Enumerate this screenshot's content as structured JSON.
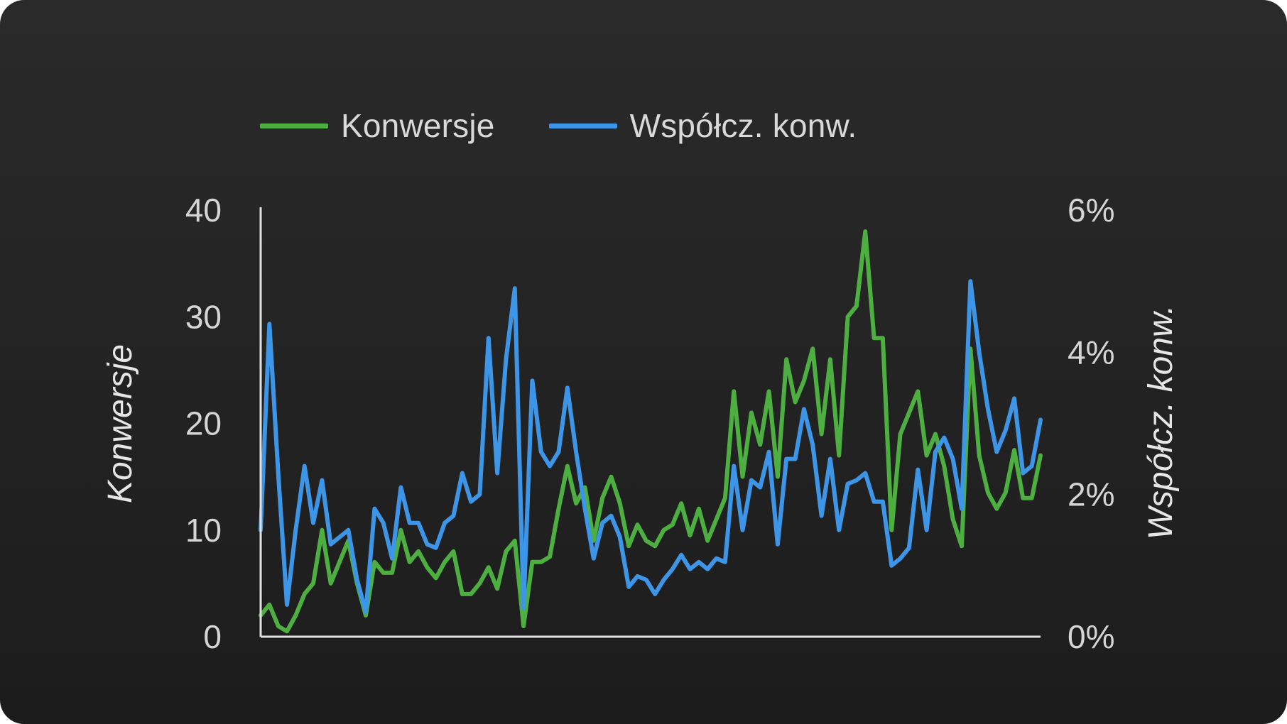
{
  "legend": {
    "conversions_label": "Konwersje",
    "rate_label": "Współcz. konw."
  },
  "colors": {
    "background": "#222222",
    "conversions": "#4caf3f",
    "rate": "#3d95e8",
    "axis": "#e0e0e0",
    "text": "#d5d5d5"
  },
  "chart_data": {
    "type": "line",
    "xlabel": "",
    "ylabel": "Konwersje",
    "y2label": "Współcz. konw.",
    "ylim": [
      0,
      40
    ],
    "y2lim": [
      0,
      6
    ],
    "yticks": [
      "0",
      "10",
      "20",
      "30",
      "40"
    ],
    "y2ticks": [
      "0%",
      "2%",
      "4%",
      "6%"
    ],
    "legend_position": "top-left",
    "grid": false,
    "series": [
      {
        "name": "Konwersje",
        "axis": "left",
        "values": [
          2,
          3,
          1,
          0.5,
          2,
          4,
          5,
          10,
          5,
          7,
          9,
          5,
          2,
          7,
          6,
          6,
          10,
          7,
          8,
          6.5,
          5.5,
          7,
          8,
          4,
          4,
          5,
          6.5,
          4.5,
          8,
          9,
          1,
          7,
          7,
          7.5,
          12,
          16,
          12.5,
          14,
          9,
          13,
          15,
          12.5,
          8.5,
          10.5,
          9,
          8.5,
          10,
          10.5,
          12.5,
          9.5,
          12,
          9,
          11,
          13,
          23,
          15,
          21,
          18,
          23,
          15,
          26,
          22,
          24,
          27,
          19,
          26,
          17,
          30,
          31,
          38,
          28,
          28,
          10,
          19,
          21,
          23,
          17,
          19,
          16,
          11,
          8.5,
          27,
          17,
          13.5,
          12,
          13.5,
          17.5,
          13,
          13,
          17
        ]
      },
      {
        "name": "Współcz. konw.",
        "axis": "right",
        "values": [
          1.5,
          4.4,
          2.3,
          0.45,
          1.5,
          2.4,
          1.6,
          2.2,
          1.3,
          1.4,
          1.5,
          0.8,
          0.35,
          1.8,
          1.6,
          1.1,
          2.1,
          1.6,
          1.6,
          1.3,
          1.25,
          1.6,
          1.7,
          2.3,
          1.9,
          2.0,
          4.2,
          2.3,
          3.9,
          4.9,
          0.4,
          3.6,
          2.6,
          2.4,
          2.6,
          3.5,
          2.6,
          1.8,
          1.1,
          1.6,
          1.7,
          1.4,
          0.7,
          0.85,
          0.8,
          0.6,
          0.8,
          0.95,
          1.15,
          0.95,
          1.05,
          0.95,
          1.1,
          1.05,
          2.4,
          1.5,
          2.2,
          2.1,
          2.6,
          1.3,
          2.5,
          2.5,
          3.2,
          2.7,
          1.7,
          2.5,
          1.5,
          2.15,
          2.2,
          2.3,
          1.9,
          1.9,
          1.0,
          1.1,
          1.25,
          2.35,
          1.5,
          2.6,
          2.8,
          2.5,
          1.8,
          5.0,
          4.0,
          3.2,
          2.6,
          2.9,
          3.35,
          2.3,
          2.4,
          3.05
        ]
      }
    ]
  }
}
